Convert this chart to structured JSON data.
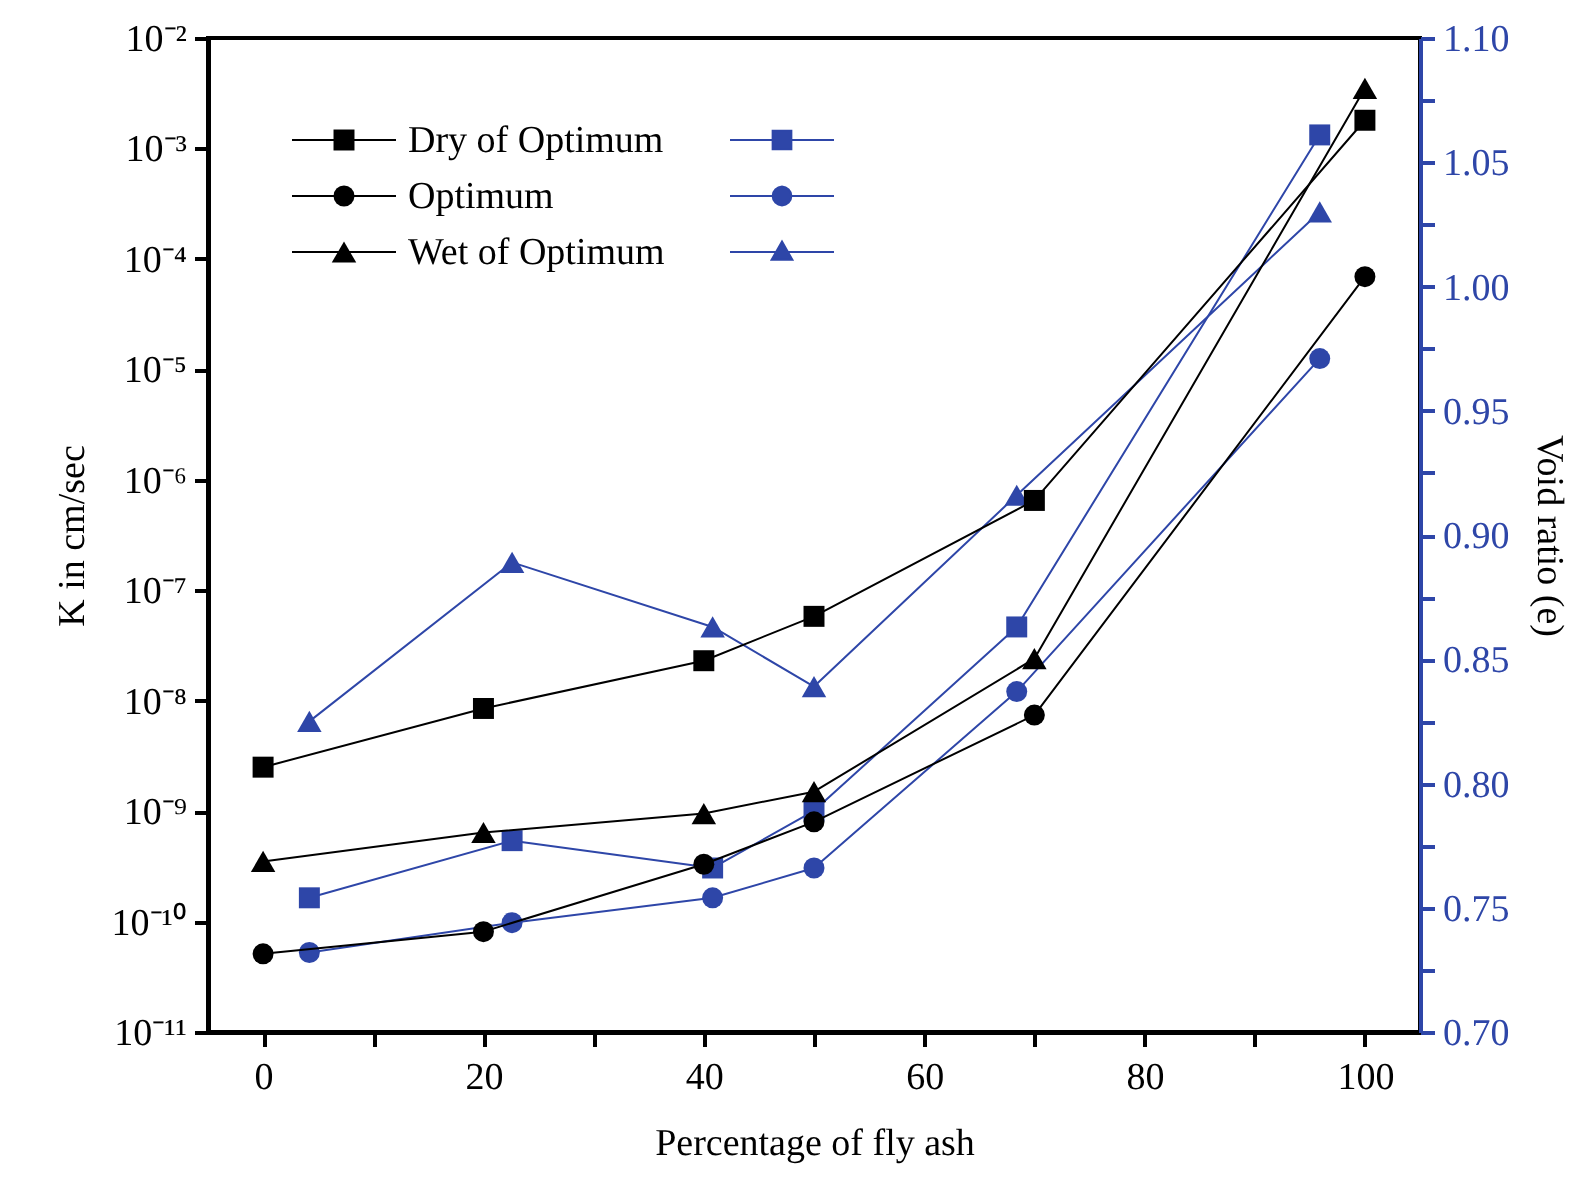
{
  "chart_data": {
    "type": "line",
    "xlabel": "Percentage of fly ash",
    "ylabel": "K in cm/sec",
    "y2label": "Void ratio (e)",
    "legend": "top left",
    "log": "y",
    "grid": false,
    "xlim": [
      -5,
      105
    ],
    "xticks": [
      0,
      {
        "value": 10,
        "label": null
      },
      20,
      {
        "value": 30,
        "label": null
      },
      40,
      {
        "value": 50,
        "label": null
      },
      60,
      {
        "value": 70,
        "label": null
      },
      80,
      {
        "value": 90,
        "label": null
      },
      100
    ],
    "ylim": [
      1e-11,
      0.01
    ],
    "yticks": [
      {
        "value": 1e-11,
        "label": "10⁻¹¹"
      },
      {
        "value": 1e-10,
        "label": "10⁻¹⁰"
      },
      {
        "value": 1e-09,
        "label": "10⁻⁹"
      },
      {
        "value": 1e-08,
        "label": "10⁻⁸"
      },
      {
        "value": 1e-07,
        "label": "10⁻⁷"
      },
      {
        "value": 1e-06,
        "label": "10⁻⁶"
      },
      {
        "value": 1e-05,
        "label": "10⁻⁵"
      },
      {
        "value": 0.0001,
        "label": "10⁻⁴"
      },
      {
        "value": 0.001,
        "label": "10⁻³"
      },
      {
        "value": 0.01,
        "label": "10⁻²"
      }
    ],
    "y2lim": [
      0.7,
      1.1
    ],
    "y2ticks": [
      {
        "value": 0.7,
        "label": "0.70"
      },
      {
        "value": 0.725,
        "label": null
      },
      0.75,
      {
        "value": 0.775,
        "label": null
      },
      {
        "value": 0.8,
        "label": "0.80"
      },
      {
        "value": 0.825,
        "label": null
      },
      0.85,
      {
        "value": 0.875,
        "label": null
      },
      {
        "value": 0.9,
        "label": "0.90"
      },
      {
        "value": 0.925,
        "label": null
      },
      0.95,
      {
        "value": 0.975,
        "label": null
      },
      {
        "value": 1.0,
        "label": "1.00"
      },
      {
        "value": 1.025,
        "label": null
      },
      1.05,
      {
        "value": 1.075,
        "label": null
      },
      {
        "value": 1.1,
        "label": "1.10"
      }
    ],
    "series": [
      {
        "name": "Dry of Optimum",
        "color": "#000000",
        "marker": "square",
        "x": [
          0,
          20,
          40,
          50,
          70,
          100
        ],
        "values": [
          2.5e-09,
          8.5e-09,
          2.3e-08,
          5.8e-08,
          6.5e-07,
          0.0018
        ]
      },
      {
        "name": "Optimum",
        "color": "#000000",
        "marker": "circle",
        "x": [
          0,
          20,
          40,
          50,
          70,
          100
        ],
        "values": [
          5.1e-11,
          8.1e-11,
          3.3e-10,
          8e-10,
          7.4e-09,
          6.9e-05
        ]
      },
      {
        "name": "Wet of Optimum",
        "color": "#000000",
        "marker": "triangle",
        "x": [
          0,
          20,
          40,
          50,
          70,
          100
        ],
        "values": [
          3.5e-10,
          6.4e-10,
          9.5e-10,
          1.5e-09,
          2.4e-08,
          0.0035
        ]
      },
      {
        "color": "#2e46a8",
        "marker": "square",
        "axis": "y2",
        "x": [
          4.2,
          22.6,
          40.8,
          50,
          68.4,
          95.9
        ],
        "values": [
          0.754,
          0.777,
          0.766,
          0.789,
          0.863,
          1.061
        ]
      },
      {
        "color": "#2e46a8",
        "marker": "circle",
        "axis": "y2",
        "x": [
          4.2,
          22.6,
          40.8,
          50,
          68.4,
          95.9
        ],
        "values": [
          0.732,
          0.744,
          0.754,
          0.766,
          0.837,
          0.971
        ]
      },
      {
        "color": "#2e46a8",
        "marker": "triangle",
        "axis": "y2",
        "x": [
          4.2,
          22.6,
          40.8,
          50,
          68.4,
          95.9
        ],
        "values": [
          0.825,
          0.889,
          0.863,
          0.839,
          0.916,
          1.03
        ]
      }
    ]
  }
}
